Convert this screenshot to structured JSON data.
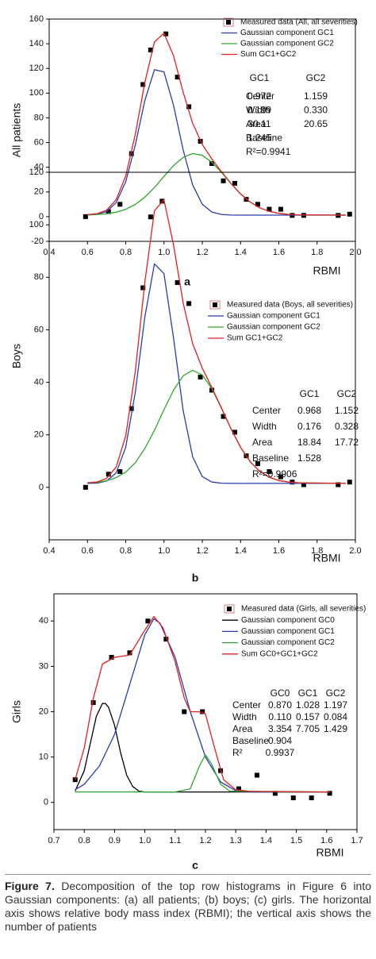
{
  "chart_data": [
    {
      "type": "scatter",
      "y_label": "All patients",
      "x_label": "RBMI",
      "panel_label": "a",
      "xlim": [
        0.4,
        2.0
      ],
      "ylim": [
        -20,
        160
      ],
      "xticks": [
        0.4,
        0.6,
        0.8,
        {
          "value": 1,
          "label": "1.0"
        },
        1.2,
        1.4,
        1.6,
        1.8,
        {
          "value": 2,
          "label": "2.0"
        }
      ],
      "yticks": [
        -20,
        0,
        20,
        40,
        60,
        80,
        100,
        120,
        140,
        160
      ],
      "series": [
        {
          "name": "Measured data (All, all severities)",
          "color": "#000000",
          "mark": "square",
          "x": [
            0.59,
            0.71,
            0.77,
            0.83,
            0.89,
            0.93,
            1.01,
            1.07,
            1.13,
            1.19,
            1.25,
            1.31,
            1.37,
            1.43,
            1.49,
            1.55,
            1.61,
            1.67,
            1.73,
            1.91,
            1.97
          ],
          "values": [
            0,
            4,
            10,
            51,
            107,
            135,
            148,
            113,
            89,
            61,
            43,
            29,
            27,
            14,
            10,
            6,
            6,
            1,
            1,
            1,
            2
          ]
        },
        {
          "name": "Gaussian component GC1",
          "color": "#2a3bb0",
          "mark": "line",
          "x": [
            0.6,
            0.65,
            0.7,
            0.75,
            0.8,
            0.85,
            0.9,
            0.95,
            1.0,
            1.05,
            1.1,
            1.15,
            1.2,
            1.25,
            1.3,
            1.35,
            1.4,
            1.45,
            1.5,
            1.55,
            1.6,
            1.65,
            1.7,
            1.95
          ],
          "values": [
            1.4,
            1.9,
            4.1,
            11.3,
            28.3,
            58.1,
            94.1,
            119.0,
            117.2,
            90.0,
            54.0,
            25.6,
            10.0,
            3.7,
            1.8,
            1.3,
            1.2,
            1.2,
            1.2,
            1.2,
            1.2,
            1.2,
            1.2,
            1.2
          ]
        },
        {
          "name": "Gaussian component GC2",
          "color": "#2ea82e",
          "mark": "line",
          "x": [
            0.6,
            0.65,
            0.7,
            0.75,
            0.8,
            0.85,
            0.9,
            0.95,
            1.0,
            1.05,
            1.1,
            1.15,
            1.2,
            1.25,
            1.3,
            1.35,
            1.4,
            1.45,
            1.5,
            1.55,
            1.6,
            1.65,
            1.7,
            1.95
          ],
          "values": [
            1.4,
            1.7,
            2.3,
            3.6,
            5.9,
            9.9,
            15.8,
            23.6,
            32.6,
            41.4,
            48.0,
            51.1,
            49.6,
            44.1,
            35.9,
            26.8,
            18.4,
            11.8,
            7.1,
            4.3,
            2.6,
            1.8,
            1.5,
            1.2
          ]
        },
        {
          "name": "Sum GC1+GC2",
          "color": "#e02020",
          "mark": "line",
          "x": [
            0.6,
            0.65,
            0.7,
            0.75,
            0.8,
            0.85,
            0.9,
            0.95,
            1.0,
            1.05,
            1.1,
            1.15,
            1.2,
            1.25,
            1.3,
            1.35,
            1.4,
            1.45,
            1.5,
            1.55,
            1.6,
            1.65,
            1.7,
            1.95
          ],
          "values": [
            1.6,
            2.4,
            5.2,
            13.7,
            33.0,
            66.8,
            108.7,
            141.4,
            148.6,
            130.2,
            100.8,
            75.5,
            58.4,
            46.6,
            36.5,
            26.9,
            18.4,
            11.8,
            7.1,
            4.3,
            2.6,
            1.8,
            1.5,
            1.2
          ]
        }
      ],
      "params": {
        "header": [
          "GC1",
          "GC2"
        ],
        "rows": [
          [
            "Center",
            "0.972",
            "1.159"
          ],
          [
            "Width",
            "0.199",
            "0.330"
          ],
          [
            "Area",
            "30.11",
            "20.65"
          ],
          [
            "Baseline",
            "1.245"
          ],
          [
            "R²=0.9941"
          ]
        ]
      }
    },
    {
      "type": "scatter",
      "y_label": "Boys",
      "x_label": "RBMI",
      "panel_label": "b",
      "xlim": [
        0.4,
        2.0
      ],
      "ylim": [
        -20,
        120
      ],
      "xticks": [
        0.4,
        0.6,
        0.8,
        {
          "value": 1,
          "label": "1.0"
        },
        1.2,
        1.4,
        1.6,
        1.8,
        {
          "value": 2,
          "label": "2.0"
        }
      ],
      "yticks": [
        0,
        20,
        40,
        60,
        80,
        100,
        120
      ],
      "series": [
        {
          "name": "Measured data (Boys, all severities)",
          "color": "#000000",
          "mark": "square",
          "x": [
            0.59,
            0.71,
            0.77,
            0.83,
            0.89,
            0.93,
            0.99,
            1.07,
            1.13,
            1.19,
            1.25,
            1.31,
            1.37,
            1.43,
            1.49,
            1.55,
            1.61,
            1.67,
            1.73,
            1.91,
            1.97
          ],
          "values": [
            0,
            5,
            6,
            30,
            76,
            103,
            109,
            78,
            70,
            42,
            37,
            27,
            21,
            12,
            9,
            6,
            4,
            2,
            1,
            1,
            2
          ]
        },
        {
          "name": "Gaussian component GC1",
          "color": "#2a3bb0",
          "mark": "line",
          "x": [
            0.6,
            0.65,
            0.7,
            0.75,
            0.8,
            0.85,
            0.9,
            0.95,
            1.0,
            1.05,
            1.1,
            1.15,
            1.2,
            1.25,
            1.3,
            1.35,
            1.4,
            1.45,
            1.5,
            1.55,
            1.6,
            1.65,
            1.7,
            1.95
          ],
          "values": [
            1.5,
            1.6,
            2.4,
            5.5,
            15.3,
            36.3,
            64.9,
            85.1,
            81.4,
            56.8,
            29.2,
            11.6,
            4.1,
            2.0,
            1.6,
            1.5,
            1.5,
            1.5,
            1.5,
            1.5,
            1.5,
            1.5,
            1.5,
            1.5
          ]
        },
        {
          "name": "Gaussian component GC2",
          "color": "#2ea82e",
          "mark": "line",
          "x": [
            0.6,
            0.65,
            0.7,
            0.75,
            0.8,
            0.85,
            0.9,
            0.95,
            1.0,
            1.05,
            1.1,
            1.15,
            1.2,
            1.25,
            1.3,
            1.35,
            1.4,
            1.45,
            1.5,
            1.55,
            1.6,
            1.65,
            1.7,
            1.95
          ],
          "values": [
            1.7,
            1.9,
            2.5,
            3.7,
            5.8,
            9.4,
            14.8,
            21.7,
            29.6,
            37.0,
            42.5,
            44.6,
            42.8,
            37.5,
            30.2,
            22.3,
            15.3,
            9.8,
            6.1,
            3.8,
            2.6,
            2.0,
            1.7,
            1.5
          ]
        },
        {
          "name": "Sum GC1+GC2",
          "color": "#e02020",
          "mark": "line",
          "x": [
            0.6,
            0.65,
            0.7,
            0.75,
            0.8,
            0.85,
            0.9,
            0.95,
            1.0,
            1.05,
            1.1,
            1.15,
            1.2,
            1.25,
            1.3,
            1.35,
            1.4,
            1.45,
            1.5,
            1.55,
            1.6,
            1.65,
            1.7,
            1.95
          ],
          "values": [
            1.7,
            2.0,
            3.4,
            7.7,
            19.6,
            44.2,
            78.2,
            105.3,
            109.5,
            92.3,
            70.2,
            54.7,
            45.4,
            38.0,
            30.3,
            22.3,
            15.3,
            9.8,
            6.1,
            3.8,
            2.6,
            2.0,
            1.7,
            1.5
          ]
        }
      ],
      "params": {
        "header": [
          "GC1",
          "GC2"
        ],
        "rows": [
          [
            "Center",
            "0.968",
            "1.152"
          ],
          [
            "Width",
            "0.176",
            "0.328"
          ],
          [
            "Area",
            "18.84",
            "17.72"
          ],
          [
            "Baseline",
            "1.528"
          ],
          [
            "R²=0.9906"
          ]
        ]
      }
    },
    {
      "type": "scatter",
      "y_label": "Girls",
      "x_label": "RBMI",
      "panel_label": "c",
      "xlim": [
        0.7,
        1.7
      ],
      "ylim": [
        -6,
        46
      ],
      "xticks": [
        0.7,
        0.8,
        0.9,
        {
          "value": 1,
          "label": "1.0"
        },
        1.1,
        1.2,
        1.3,
        1.4,
        1.5,
        1.6,
        1.7
      ],
      "yticks": [
        0,
        10,
        20,
        30,
        40
      ],
      "series": [
        {
          "name": "Measured data (Girls, all severities)",
          "color": "#000000",
          "mark": "square",
          "x": [
            0.77,
            0.83,
            0.89,
            0.95,
            1.01,
            1.07,
            1.13,
            1.19,
            1.25,
            1.31,
            1.37,
            1.43,
            1.49,
            1.55,
            1.61
          ],
          "values": [
            5,
            22,
            32,
            33,
            40,
            36,
            20,
            20,
            7,
            3,
            6,
            2,
            1,
            1,
            2
          ]
        },
        {
          "name": "Gaussian component GC0",
          "color": "#000000",
          "mark": "line",
          "x": [
            0.77,
            0.8,
            0.82,
            0.84,
            0.86,
            0.87,
            0.88,
            0.9,
            0.92,
            0.94,
            0.96,
            0.98,
            1.0,
            1.61
          ],
          "values": [
            2.5,
            7,
            13,
            19,
            21.8,
            21.8,
            21,
            17,
            11,
            6,
            3.5,
            2.5,
            2.3,
            2.3
          ]
        },
        {
          "name": "Gaussian component GC1",
          "color": "#2a3bb0",
          "mark": "line",
          "x": [
            0.77,
            0.8,
            0.85,
            0.9,
            0.95,
            1.0,
            1.03,
            1.05,
            1.1,
            1.15,
            1.2,
            1.25,
            1.3,
            1.35,
            1.61
          ],
          "values": [
            2.8,
            4,
            8,
            15,
            26,
            37,
            40.5,
            39.5,
            32,
            20,
            10,
            4.5,
            2.6,
            2.3,
            2.3
          ]
        },
        {
          "name": "Gaussian component GC2",
          "color": "#2ea82e",
          "mark": "line",
          "x": [
            0.77,
            1.1,
            1.15,
            1.18,
            1.2,
            1.22,
            1.25,
            1.28,
            1.61
          ],
          "values": [
            2.3,
            2.3,
            3,
            8,
            10.5,
            8.5,
            4,
            2.5,
            2.3
          ]
        },
        {
          "name": "Sum GC0+GC1+GC2",
          "color": "#e02020",
          "mark": "line",
          "x": [
            0.77,
            0.8,
            0.83,
            0.86,
            0.9,
            0.95,
            1.0,
            1.03,
            1.06,
            1.1,
            1.13,
            1.15,
            1.18,
            1.2,
            1.23,
            1.26,
            1.3,
            1.35,
            1.61
          ],
          "values": [
            5,
            12,
            23,
            30.5,
            32,
            32.5,
            38,
            41,
            38.5,
            31,
            23,
            20,
            20,
            19.5,
            12,
            5,
            2.8,
            2.4,
            2.3
          ]
        }
      ],
      "params": {
        "header": [
          "GC0",
          "GC1",
          "GC2"
        ],
        "rows": [
          [
            "Center",
            "0.870",
            "1.028",
            "1.197"
          ],
          [
            "Width",
            "0.110",
            "0.157",
            "0.084"
          ],
          [
            "Area",
            "3.354",
            "7.705",
            "1.429"
          ],
          [
            "Baseline",
            "0.904"
          ],
          [
            "R²",
            "0.9937"
          ]
        ]
      }
    }
  ],
  "caption": {
    "label": "Figure 7.",
    "text": "Decomposition of the top row histograms in Figure 6 into Gaussian components: (a) all patients; (b) boys; (c) girls. The horizontal axis shows relative body mass index (RBMI); the vertical axis shows the number of patients"
  }
}
